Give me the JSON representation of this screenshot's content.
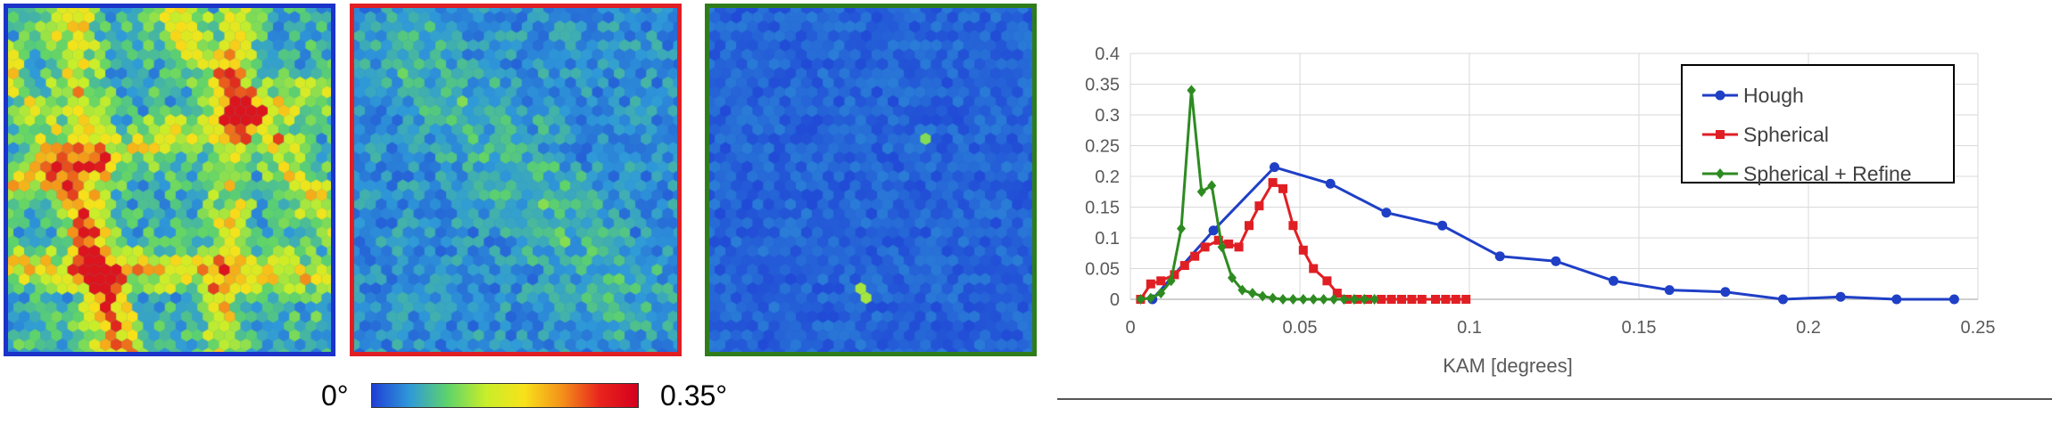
{
  "colorbar": {
    "min_label": "0°",
    "max_label": "0.35°",
    "colors": [
      "#1f3fd6",
      "#2f9ad8",
      "#5fd36a",
      "#c8ee2a",
      "#f7e21a",
      "#f4911a",
      "#e8231c",
      "#d4001e"
    ]
  },
  "maps": [
    {
      "name": "Hough",
      "border_color": "#1b33c9"
    },
    {
      "name": "Spherical",
      "border_color": "#e01f24"
    },
    {
      "name": "Spherical + Refine",
      "border_color": "#2f7d1a"
    }
  ],
  "chart_data": {
    "type": "line",
    "xlabel": "KAM [degrees]",
    "ylabel": "",
    "xlim": [
      0,
      0.25
    ],
    "ylim": [
      0,
      0.4
    ],
    "xticks": [
      "0",
      "0.05",
      "0.1",
      "0.15",
      "0.2",
      "0.25"
    ],
    "yticks": [
      "0",
      "0.05",
      "0.1",
      "0.15",
      "0.2",
      "0.25",
      "0.3",
      "0.35",
      "0.4"
    ],
    "grid": true,
    "legend_position": "top-right",
    "series": [
      {
        "name": "Hough",
        "color": "#1f3fc6",
        "marker": "circle",
        "x": [
          0.0065,
          0.0245,
          0.0425,
          0.059,
          0.0755,
          0.092,
          0.109,
          0.1255,
          0.1425,
          0.159,
          0.1755,
          0.1925,
          0.2095,
          0.226,
          0.243
        ],
        "y": [
          0.0,
          0.112,
          0.215,
          0.188,
          0.141,
          0.12,
          0.07,
          0.062,
          0.03,
          0.015,
          0.012,
          0.0,
          0.004,
          0.0,
          0.0
        ]
      },
      {
        "name": "Spherical",
        "color": "#e01f24",
        "marker": "square",
        "x": [
          0.003,
          0.006,
          0.009,
          0.013,
          0.016,
          0.019,
          0.022,
          0.026,
          0.029,
          0.032,
          0.035,
          0.038,
          0.042,
          0.045,
          0.048,
          0.051,
          0.054,
          0.058,
          0.061,
          0.064,
          0.067,
          0.07,
          0.074,
          0.077,
          0.08,
          0.083,
          0.086,
          0.09,
          0.093,
          0.096,
          0.099
        ],
        "y": [
          0.0,
          0.025,
          0.03,
          0.04,
          0.055,
          0.07,
          0.085,
          0.096,
          0.09,
          0.085,
          0.12,
          0.152,
          0.19,
          0.18,
          0.12,
          0.08,
          0.05,
          0.03,
          0.01,
          0.0,
          0.0,
          0.0,
          0.0,
          0.0,
          0.0,
          0.0,
          0.0,
          0.0,
          0.0,
          0.0,
          0.0
        ]
      },
      {
        "name": "Spherical + Refine",
        "color": "#2e8b21",
        "marker": "diamond",
        "x": [
          0.003,
          0.006,
          0.009,
          0.012,
          0.015,
          0.018,
          0.021,
          0.024,
          0.027,
          0.03,
          0.033,
          0.036,
          0.039,
          0.042,
          0.045,
          0.048,
          0.051,
          0.054,
          0.057,
          0.06,
          0.063,
          0.066,
          0.069,
          0.072
        ],
        "y": [
          0.0,
          0.002,
          0.01,
          0.03,
          0.115,
          0.34,
          0.175,
          0.185,
          0.085,
          0.035,
          0.015,
          0.01,
          0.005,
          0.002,
          0.0,
          0.0,
          0.0,
          0.0,
          0.0,
          0.0,
          0.0,
          0.0,
          0.0,
          0.0
        ]
      }
    ]
  }
}
